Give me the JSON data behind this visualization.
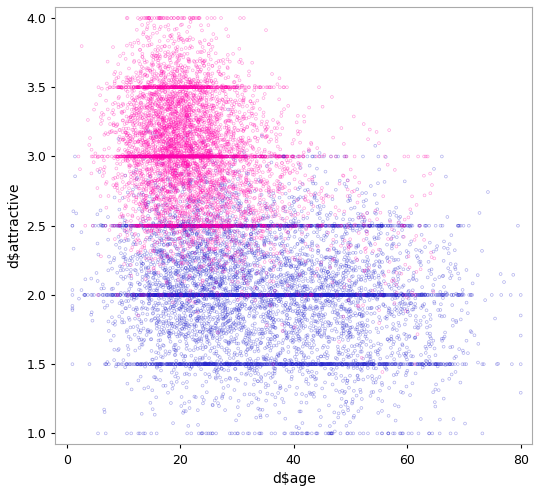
{
  "title": "",
  "xlabel": "d$age",
  "ylabel": "d$attractive",
  "xlim": [
    -2,
    82
  ],
  "ylim": [
    0.92,
    4.08
  ],
  "xticks": [
    0,
    20,
    40,
    60,
    80
  ],
  "yticks": [
    1.0,
    1.5,
    2.0,
    2.5,
    3.0,
    3.5,
    4.0
  ],
  "color_female": "#FF00AA",
  "color_male": "#2222CC",
  "alpha_female": 0.35,
  "alpha_male": 0.35,
  "marker_size": 4,
  "n_points_female": 6000,
  "n_points_male": 8000,
  "seed_female": 7,
  "seed_male": 13,
  "background_color": "#ffffff",
  "border_color": "#aaaaaa",
  "figwidth": 5.39,
  "figheight": 4.93,
  "dpi": 100
}
